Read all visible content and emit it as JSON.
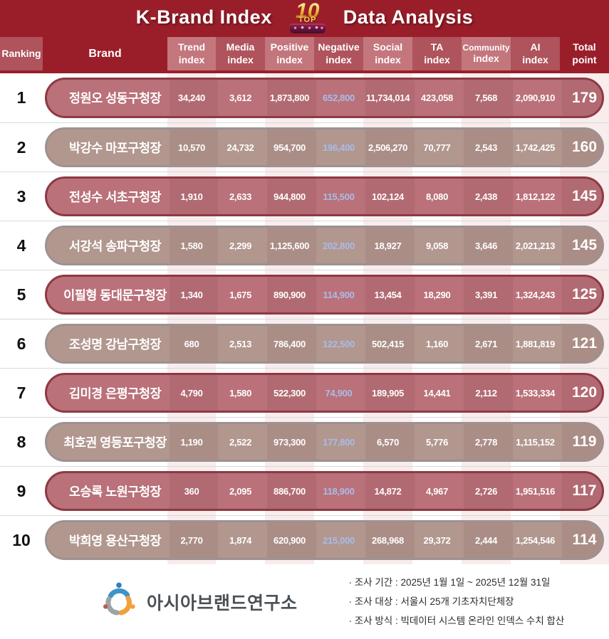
{
  "title": {
    "left": "K-Brand Index",
    "right": "Data Analysis",
    "badge": {
      "number": "10",
      "word": "TOP"
    }
  },
  "columns": [
    {
      "l1": "Ranking",
      "l2": "",
      "tone": "medium",
      "name": "ranking"
    },
    {
      "l1": "Brand",
      "l2": "",
      "tone": "dark",
      "name": "brand",
      "big": true
    },
    {
      "l1": "Trend",
      "l2": "index",
      "tone": "light",
      "name": "trend-index"
    },
    {
      "l1": "Media",
      "l2": "index",
      "tone": "medium",
      "name": "media-index"
    },
    {
      "l1": "Positive",
      "l2": "index",
      "tone": "light",
      "name": "positive-index"
    },
    {
      "l1": "Negative",
      "l2": "index",
      "tone": "medium",
      "name": "negative-index"
    },
    {
      "l1": "Social",
      "l2": "index",
      "tone": "light",
      "name": "social-index"
    },
    {
      "l1": "TA",
      "l2": "index",
      "tone": "medium",
      "name": "ta-index"
    },
    {
      "l1": "Community",
      "l2": "index",
      "tone": "light",
      "name": "community-index",
      "small": true
    },
    {
      "l1": "AI",
      "l2": "index",
      "tone": "medium",
      "name": "ai-index"
    },
    {
      "l1": "Total",
      "l2": "point",
      "tone": "dark",
      "name": "total-point"
    }
  ],
  "rows": [
    {
      "rank": "1",
      "name": "정원오 성동구청장",
      "values": [
        "34,240",
        "3,612",
        "1,873,800",
        "652,800",
        "11,734,014",
        "423,058",
        "7,568",
        "2,090,910"
      ],
      "total": "179",
      "style": "rose"
    },
    {
      "rank": "2",
      "name": "박강수 마포구청장",
      "values": [
        "10,570",
        "24,732",
        "954,700",
        "196,400",
        "2,506,270",
        "70,777",
        "2,543",
        "1,742,425"
      ],
      "total": "160",
      "style": "taupe"
    },
    {
      "rank": "3",
      "name": "전성수 서초구청장",
      "values": [
        "1,910",
        "2,633",
        "944,800",
        "115,500",
        "102,124",
        "8,080",
        "2,438",
        "1,812,122"
      ],
      "total": "145",
      "style": "rose"
    },
    {
      "rank": "4",
      "name": "서강석 송파구청장",
      "values": [
        "1,580",
        "2,299",
        "1,125,600",
        "202,800",
        "18,927",
        "9,058",
        "3,646",
        "2,021,213"
      ],
      "total": "145",
      "style": "taupe"
    },
    {
      "rank": "5",
      "name": "이필형 동대문구청장",
      "values": [
        "1,340",
        "1,675",
        "890,900",
        "114,900",
        "13,454",
        "18,290",
        "3,391",
        "1,324,243"
      ],
      "total": "125",
      "style": "rose"
    },
    {
      "rank": "6",
      "name": "조성명 강남구청장",
      "values": [
        "680",
        "2,513",
        "786,400",
        "122,500",
        "502,415",
        "1,160",
        "2,671",
        "1,881,819"
      ],
      "total": "121",
      "style": "taupe"
    },
    {
      "rank": "7",
      "name": "김미경 은평구청장",
      "values": [
        "4,790",
        "1,580",
        "522,300",
        "74,900",
        "189,905",
        "14,441",
        "2,112",
        "1,533,334"
      ],
      "total": "120",
      "style": "rose"
    },
    {
      "rank": "8",
      "name": "최호권 영등포구청장",
      "values": [
        "1,190",
        "2,522",
        "973,300",
        "177,800",
        "6,570",
        "5,776",
        "2,778",
        "1,115,152"
      ],
      "total": "119",
      "style": "taupe"
    },
    {
      "rank": "9",
      "name": "오승록 노원구청장",
      "values": [
        "360",
        "2,095",
        "886,700",
        "118,900",
        "14,872",
        "4,967",
        "2,726",
        "1,951,516"
      ],
      "total": "117",
      "style": "rose"
    },
    {
      "rank": "10",
      "name": "박희영 용산구청장",
      "values": [
        "2,770",
        "1,874",
        "620,900",
        "215,000",
        "268,968",
        "29,372",
        "2,444",
        "1,254,546"
      ],
      "total": "114",
      "style": "taupe"
    }
  ],
  "footer": {
    "org_name": "아시아브랜드연구소",
    "notes": [
      "· 조사 기간 : 2025년 1월 1일 ~ 2025년 12월 31일",
      "· 조사 대상 : 서울시 25개 기초자치단체장",
      "· 조사 방식 : 빅데이터 시스템 온라인 인덱스 수치 합산"
    ]
  },
  "colors": {
    "banner_red": "#9A1E2A",
    "header_light": "#C4767D",
    "header_medium": "#AF535C",
    "pill_rose_fill": "#BA7179",
    "pill_rose_border": "#8E3944",
    "pill_taupe_fill": "#B2978F",
    "pill_taupe_border": "#9D9191",
    "negative_value_text": "#A9BCE9",
    "column_stripe": "#F8ECEC",
    "badge_gold": "#F3C13F"
  },
  "chart_data": {
    "type": "table",
    "title": "K-Brand Index TOP 10 Data Analysis",
    "columns": [
      "Ranking",
      "Brand",
      "Trend index",
      "Media index",
      "Positive index",
      "Negative index",
      "Social index",
      "TA index",
      "Community index",
      "AI index",
      "Total point"
    ],
    "rows": [
      [
        1,
        "정원오 성동구청장",
        34240,
        3612,
        1873800,
        652800,
        11734014,
        423058,
        7568,
        2090910,
        179
      ],
      [
        2,
        "박강수 마포구청장",
        10570,
        24732,
        954700,
        196400,
        2506270,
        70777,
        2543,
        1742425,
        160
      ],
      [
        3,
        "전성수 서초구청장",
        1910,
        2633,
        944800,
        115500,
        102124,
        8080,
        2438,
        1812122,
        145
      ],
      [
        4,
        "서강석 송파구청장",
        1580,
        2299,
        1125600,
        202800,
        18927,
        9058,
        3646,
        2021213,
        145
      ],
      [
        5,
        "이필형 동대문구청장",
        1340,
        1675,
        890900,
        114900,
        13454,
        18290,
        3391,
        1324243,
        125
      ],
      [
        6,
        "조성명 강남구청장",
        680,
        2513,
        786400,
        122500,
        502415,
        1160,
        2671,
        1881819,
        121
      ],
      [
        7,
        "김미경 은평구청장",
        4790,
        1580,
        522300,
        74900,
        189905,
        14441,
        2112,
        1533334,
        120
      ],
      [
        8,
        "최호권 영등포구청장",
        1190,
        2522,
        973300,
        177800,
        6570,
        5776,
        2778,
        1115152,
        119
      ],
      [
        9,
        "오승록 노원구청장",
        360,
        2095,
        886700,
        118900,
        14872,
        4967,
        2726,
        1951516,
        117
      ],
      [
        10,
        "박희영 용산구청장",
        2770,
        1874,
        620900,
        215000,
        268968,
        29372,
        2444,
        1254546,
        114
      ]
    ]
  }
}
